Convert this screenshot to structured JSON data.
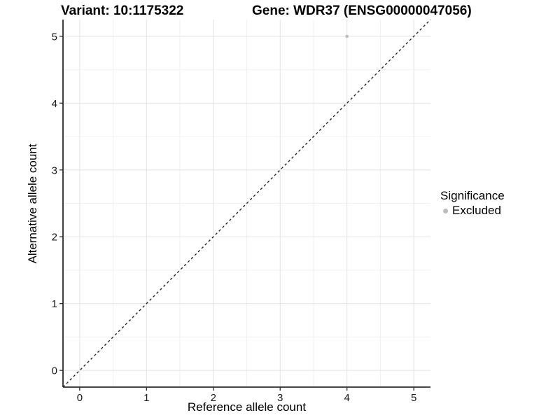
{
  "header": {
    "title_left": "Variant: 10:1175322",
    "title_right": "Gene: WDR37 (ENSG00000047056)"
  },
  "chart_data": {
    "type": "scatter",
    "title": "Variant: 10:1175322    Gene: WDR37 (ENSG00000047056)",
    "xlabel": "Reference allele count",
    "ylabel": "Alternative allele count",
    "xlim": [
      -0.25,
      5.25
    ],
    "ylim": [
      -0.25,
      5.25
    ],
    "xticks": [
      0,
      1,
      2,
      3,
      4,
      5
    ],
    "yticks": [
      0,
      1,
      2,
      3,
      4,
      5
    ],
    "grid": {
      "major": true,
      "minor": true
    },
    "identity_line": {
      "style": "dashed",
      "slope": 1,
      "intercept": 0,
      "color": "#1a1a1a"
    },
    "series": [
      {
        "name": "Excluded",
        "color": "#bdbdbd",
        "marker": "circle",
        "point_radius": 2.3,
        "points": [
          {
            "x": 4,
            "y": 5
          }
        ]
      }
    ],
    "legend": {
      "title": "Significance",
      "position": "right",
      "items": [
        {
          "label": "Excluded",
          "color": "#bdbdbd",
          "marker": "circle"
        }
      ]
    },
    "style": {
      "background": "#ffffff",
      "grid_major_color": "#e2e2e2",
      "grid_minor_color": "#f0f0f0",
      "axis_line_color": "#2b2b2b",
      "tick_color": "#2b2b2b",
      "text_color": "#000000"
    }
  }
}
